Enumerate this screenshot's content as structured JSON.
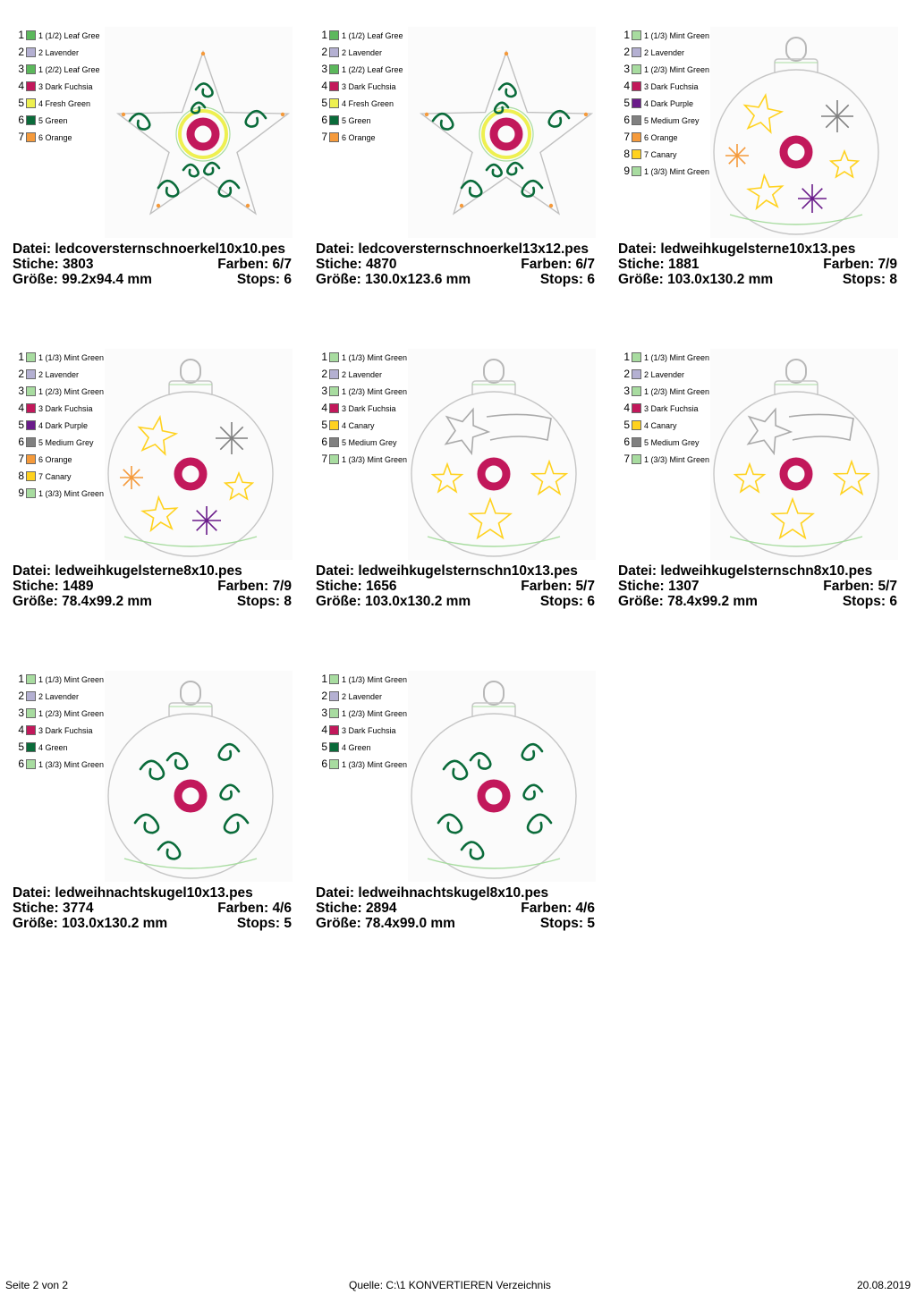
{
  "designs": [
    {
      "file": "Datei: ledcoversternschnoerkel10x10.pes",
      "stitches": "Stiche: 3803",
      "colors": "Farben: 6/7",
      "size": "Größe: 99.2x94.4 mm",
      "stops": "Stops: 6",
      "preview": "star-swirl",
      "palette": [
        {
          "n": "1",
          "label": "1 (1/2) Leaf Gree",
          "color": "#5cb85c"
        },
        {
          "n": "2",
          "label": "2 Lavender",
          "color": "#b4b0d2"
        },
        {
          "n": "3",
          "label": "1 (2/2) Leaf Gree",
          "color": "#5cb85c"
        },
        {
          "n": "4",
          "label": "3 Dark Fuchsia",
          "color": "#c2185b"
        },
        {
          "n": "5",
          "label": "4 Fresh Green",
          "color": "#eef050"
        },
        {
          "n": "6",
          "label": "5 Green",
          "color": "#0a6b3a"
        },
        {
          "n": "7",
          "label": "6 Orange",
          "color": "#f59a3b"
        }
      ]
    },
    {
      "file": "Datei: ledcoversternschnoerkel13x12.pes",
      "stitches": "Stiche: 4870",
      "colors": "Farben: 6/7",
      "size": "Größe: 130.0x123.6 mm",
      "stops": "Stops: 6",
      "preview": "star-swirl",
      "palette": [
        {
          "n": "1",
          "label": "1 (1/2) Leaf Gree",
          "color": "#5cb85c"
        },
        {
          "n": "2",
          "label": "2 Lavender",
          "color": "#b4b0d2"
        },
        {
          "n": "3",
          "label": "1 (2/2) Leaf Gree",
          "color": "#5cb85c"
        },
        {
          "n": "4",
          "label": "3 Dark Fuchsia",
          "color": "#c2185b"
        },
        {
          "n": "5",
          "label": "4 Fresh Green",
          "color": "#eef050"
        },
        {
          "n": "6",
          "label": "5 Green",
          "color": "#0a6b3a"
        },
        {
          "n": "7",
          "label": "6 Orange",
          "color": "#f59a3b"
        }
      ]
    },
    {
      "file": "Datei: ledweihkugelsterne10x13.pes",
      "stitches": "Stiche: 1881",
      "colors": "Farben: 7/9",
      "size": "Größe: 103.0x130.2 mm",
      "stops": "Stops: 8",
      "preview": "ball-stars",
      "palette": [
        {
          "n": "1",
          "label": "1 (1/3) Mint Green",
          "color": "#a8dca0"
        },
        {
          "n": "2",
          "label": "2 Lavender",
          "color": "#b4b0d2"
        },
        {
          "n": "3",
          "label": "1 (2/3) Mint Green",
          "color": "#a8dca0"
        },
        {
          "n": "4",
          "label": "3 Dark Fuchsia",
          "color": "#c2185b"
        },
        {
          "n": "5",
          "label": "4 Dark Purple",
          "color": "#6a1b8a"
        },
        {
          "n": "6",
          "label": "5 Medium Grey",
          "color": "#808080"
        },
        {
          "n": "7",
          "label": "6 Orange",
          "color": "#f59a3b"
        },
        {
          "n": "8",
          "label": "7 Canary",
          "color": "#ffd21f"
        },
        {
          "n": "9",
          "label": "1 (3/3) Mint Green",
          "color": "#a8dca0"
        }
      ]
    },
    {
      "file": "Datei: ledweihkugelsterne8x10.pes",
      "stitches": "Stiche: 1489",
      "colors": "Farben: 7/9",
      "size": "Größe: 78.4x99.2 mm",
      "stops": "Stops: 8",
      "preview": "ball-stars",
      "palette": [
        {
          "n": "1",
          "label": "1 (1/3) Mint Green",
          "color": "#a8dca0"
        },
        {
          "n": "2",
          "label": "2 Lavender",
          "color": "#b4b0d2"
        },
        {
          "n": "3",
          "label": "1 (2/3) Mint Green",
          "color": "#a8dca0"
        },
        {
          "n": "4",
          "label": "3 Dark Fuchsia",
          "color": "#c2185b"
        },
        {
          "n": "5",
          "label": "4 Dark Purple",
          "color": "#6a1b8a"
        },
        {
          "n": "6",
          "label": "5 Medium Grey",
          "color": "#808080"
        },
        {
          "n": "7",
          "label": "6 Orange",
          "color": "#f59a3b"
        },
        {
          "n": "8",
          "label": "7 Canary",
          "color": "#ffd21f"
        },
        {
          "n": "9",
          "label": "1 (3/3) Mint Green",
          "color": "#a8dca0"
        }
      ]
    },
    {
      "file": "Datei: ledweihkugelsternschn10x13.pes",
      "stitches": "Stiche: 1656",
      "colors": "Farben: 5/7",
      "size": "Größe: 103.0x130.2 mm",
      "stops": "Stops: 6",
      "preview": "ball-shooting",
      "palette": [
        {
          "n": "1",
          "label": "1 (1/3) Mint Green",
          "color": "#a8dca0"
        },
        {
          "n": "2",
          "label": "2 Lavender",
          "color": "#b4b0d2"
        },
        {
          "n": "3",
          "label": "1 (2/3) Mint Green",
          "color": "#a8dca0"
        },
        {
          "n": "4",
          "label": "3 Dark Fuchsia",
          "color": "#c2185b"
        },
        {
          "n": "5",
          "label": "4 Canary",
          "color": "#ffd21f"
        },
        {
          "n": "6",
          "label": "5 Medium Grey",
          "color": "#808080"
        },
        {
          "n": "7",
          "label": "1 (3/3) Mint Green",
          "color": "#a8dca0"
        }
      ]
    },
    {
      "file": "Datei: ledweihkugelsternschn8x10.pes",
      "stitches": "Stiche: 1307",
      "colors": "Farben: 5/7",
      "size": "Größe: 78.4x99.2 mm",
      "stops": "Stops: 6",
      "preview": "ball-shooting",
      "palette": [
        {
          "n": "1",
          "label": "1 (1/3) Mint Green",
          "color": "#a8dca0"
        },
        {
          "n": "2",
          "label": "2 Lavender",
          "color": "#b4b0d2"
        },
        {
          "n": "3",
          "label": "1 (2/3) Mint Green",
          "color": "#a8dca0"
        },
        {
          "n": "4",
          "label": "3 Dark Fuchsia",
          "color": "#c2185b"
        },
        {
          "n": "5",
          "label": "4 Canary",
          "color": "#ffd21f"
        },
        {
          "n": "6",
          "label": "5 Medium Grey",
          "color": "#808080"
        },
        {
          "n": "7",
          "label": "1 (3/3) Mint Green",
          "color": "#a8dca0"
        }
      ]
    },
    {
      "file": "Datei: ledweihnachtskugel10x13.pes",
      "stitches": "Stiche: 3774",
      "colors": "Farben: 4/6",
      "size": "Größe: 103.0x130.2 mm",
      "stops": "Stops: 5",
      "preview": "ball-swirl",
      "palette": [
        {
          "n": "1",
          "label": "1 (1/3) Mint Green",
          "color": "#a8dca0"
        },
        {
          "n": "2",
          "label": "2 Lavender",
          "color": "#b4b0d2"
        },
        {
          "n": "3",
          "label": "1 (2/3) Mint Green",
          "color": "#a8dca0"
        },
        {
          "n": "4",
          "label": "3 Dark Fuchsia",
          "color": "#c2185b"
        },
        {
          "n": "5",
          "label": "4 Green",
          "color": "#0a6b3a"
        },
        {
          "n": "6",
          "label": "1 (3/3) Mint Green",
          "color": "#a8dca0"
        }
      ]
    },
    {
      "file": "Datei: ledweihnachtskugel8x10.pes",
      "stitches": "Stiche: 2894",
      "colors": "Farben: 4/6",
      "size": "Größe: 78.4x99.0 mm",
      "stops": "Stops: 5",
      "preview": "ball-swirl",
      "palette": [
        {
          "n": "1",
          "label": "1 (1/3) Mint Green",
          "color": "#a8dca0"
        },
        {
          "n": "2",
          "label": "2 Lavender",
          "color": "#b4b0d2"
        },
        {
          "n": "3",
          "label": "1 (2/3) Mint Green",
          "color": "#a8dca0"
        },
        {
          "n": "4",
          "label": "3 Dark Fuchsia",
          "color": "#c2185b"
        },
        {
          "n": "5",
          "label": "4 Green",
          "color": "#0a6b3a"
        },
        {
          "n": "6",
          "label": "1 (3/3) Mint Green",
          "color": "#a8dca0"
        }
      ]
    }
  ],
  "footer": {
    "page": "Seite 2 von 2",
    "source": "Quelle: C:\\1 KONVERTIEREN Verzeichnis",
    "date": "20.08.2019"
  }
}
